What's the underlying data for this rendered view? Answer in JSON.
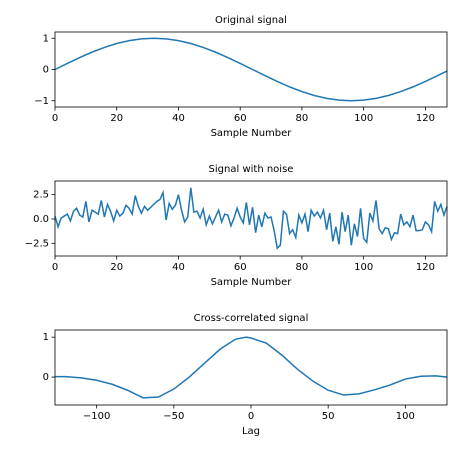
{
  "chart_data": [
    {
      "type": "line",
      "title": "Original signal",
      "x_label": "Sample Number",
      "x": [
        0,
        4,
        8,
        12,
        16,
        20,
        24,
        28,
        32,
        36,
        40,
        44,
        48,
        52,
        56,
        60,
        64,
        68,
        72,
        76,
        80,
        84,
        88,
        92,
        96,
        100,
        104,
        108,
        112,
        116,
        120,
        124,
        127
      ],
      "series": [
        {
          "name": "Original signal",
          "color": "#1f77b4",
          "values": [
            0,
            0.195,
            0.383,
            0.556,
            0.707,
            0.831,
            0.924,
            0.981,
            1,
            0.981,
            0.924,
            0.831,
            0.707,
            0.556,
            0.383,
            0.195,
            0,
            -0.195,
            -0.383,
            -0.556,
            -0.707,
            -0.831,
            -0.924,
            -0.981,
            -1,
            -0.981,
            -0.924,
            -0.831,
            -0.707,
            -0.556,
            -0.383,
            -0.195,
            -0.049
          ]
        }
      ],
      "xlim": [
        0,
        127
      ],
      "xticks": [
        0,
        20,
        40,
        60,
        80,
        100,
        120
      ],
      "ylim": [
        -1.2,
        1.2
      ],
      "yticks": [
        {
          "value": -1,
          "label": "−1"
        },
        0,
        1
      ]
    },
    {
      "type": "line",
      "title": "Signal with noise",
      "x_label": "Sample Number",
      "x": [
        0,
        1,
        2,
        3,
        4,
        5,
        6,
        7,
        8,
        9,
        10,
        11,
        12,
        13,
        14,
        15,
        16,
        17,
        18,
        19,
        20,
        21,
        22,
        23,
        24,
        25,
        26,
        27,
        28,
        29,
        30,
        31,
        32,
        33,
        34,
        35,
        36,
        37,
        38,
        39,
        40,
        41,
        42,
        43,
        44,
        45,
        46,
        47,
        48,
        49,
        50,
        51,
        52,
        53,
        54,
        55,
        56,
        57,
        58,
        59,
        60,
        61,
        62,
        63,
        64,
        65,
        66,
        67,
        68,
        69,
        70,
        71,
        72,
        73,
        74,
        75,
        76,
        77,
        78,
        79,
        80,
        81,
        82,
        83,
        84,
        85,
        86,
        87,
        88,
        89,
        90,
        91,
        92,
        93,
        94,
        95,
        96,
        97,
        98,
        99,
        100,
        101,
        102,
        103,
        104,
        105,
        106,
        107,
        108,
        109,
        110,
        111,
        112,
        113,
        114,
        115,
        116,
        117,
        118,
        119,
        120,
        121,
        122,
        123,
        124,
        125,
        126,
        127
      ],
      "series": [
        {
          "name": "Signal with noise",
          "color": "#1f77b4",
          "values": [
            0.3,
            -0.8,
            0.1,
            0.3,
            0.5,
            -0.2,
            0.8,
            1.1,
            0.4,
            0.2,
            1.8,
            -0.3,
            0.9,
            0.7,
            0.5,
            1.9,
            0.2,
            1.5,
            0.8,
            -0.2,
            0.9,
            0.3,
            0.6,
            1.4,
            1.1,
            0.5,
            2.4,
            1.3,
            0.6,
            1.3,
            0.9,
            1.2,
            1.5,
            1.8,
            2.0,
            2.7,
            -0.1,
            1.6,
            1.0,
            1.4,
            2.5,
            0.9,
            -0.3,
            0.2,
            3.2,
            0.7,
            0.8,
            0.1,
            1.0,
            -0.6,
            0.3,
            -0.5,
            0.2,
            0.9,
            -0.3,
            0.5,
            0.4,
            -0.7,
            0.1,
            1.1,
            0.2,
            -0.4,
            1.7,
            -0.6,
            1.2,
            -1.4,
            0.4,
            -0.8,
            0.6,
            0.1,
            0.2,
            -1.2,
            -3.0,
            -2.7,
            0.8,
            0.5,
            -1.5,
            -1.1,
            -1.9,
            0.4,
            -0.4,
            0.5,
            -1.3,
            0.9,
            0.3,
            0.7,
            0.1,
            0.9,
            -1.1,
            0.6,
            -2.3,
            -0.8,
            -2.6,
            0.7,
            -1.3,
            0.4,
            -2.7,
            -0.5,
            -1.8,
            1.1,
            -2.0,
            -2.4,
            0.6,
            -0.2,
            1.9,
            -1.0,
            -1.5,
            -0.9,
            -1.0,
            -2.1,
            -1.4,
            -1.5,
            0.5,
            -0.6,
            -0.3,
            -0.8,
            0.4,
            -1.2,
            -1.2,
            -1.1,
            -0.3,
            -0.6,
            -1.3,
            1.8,
            0.8,
            1.5,
            0.4,
            1.3
          ]
        }
      ],
      "xlim": [
        0,
        127
      ],
      "xticks": [
        0,
        20,
        40,
        60,
        80,
        100,
        120
      ],
      "ylim": [
        -3.8,
        3.9
      ],
      "yticks": [
        {
          "value": -2.5,
          "label": "−2.5"
        },
        {
          "value": 0,
          "label": "0.0"
        },
        2.5
      ]
    },
    {
      "type": "line",
      "title": "Cross-correlated signal",
      "x_label": "Lag",
      "x": [
        -127,
        -120,
        -110,
        -100,
        -90,
        -80,
        -70,
        -60,
        -50,
        -40,
        -30,
        -20,
        -10,
        -3,
        0,
        10,
        20,
        30,
        40,
        50,
        60,
        70,
        80,
        90,
        100,
        110,
        120,
        127
      ],
      "series": [
        {
          "name": "Cross-correlated signal",
          "color": "#1f77b4",
          "values": [
            0.01,
            0.01,
            -0.02,
            -0.08,
            -0.18,
            -0.33,
            -0.52,
            -0.5,
            -0.3,
            0.0,
            0.35,
            0.7,
            0.95,
            1.0,
            0.98,
            0.85,
            0.55,
            0.2,
            -0.1,
            -0.33,
            -0.45,
            -0.42,
            -0.32,
            -0.2,
            -0.05,
            0.02,
            0.03,
            0.0
          ]
        }
      ],
      "xlim": [
        -127,
        127
      ],
      "xticks": [
        {
          "value": -100,
          "label": "−100"
        },
        {
          "value": -50,
          "label": "−50"
        },
        0,
        50,
        100
      ],
      "ylim": [
        -0.7,
        1.18
      ],
      "yticks": [
        0,
        1
      ]
    }
  ]
}
